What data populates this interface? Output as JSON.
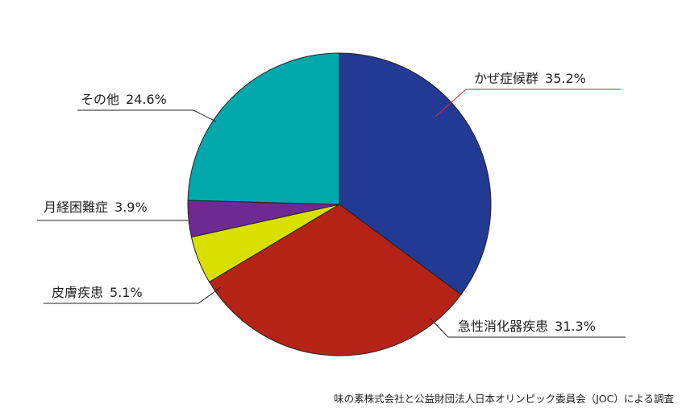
{
  "chart_data": {
    "type": "pie",
    "slices": [
      {
        "label": "かぜ症候群",
        "value": 35.2,
        "value_label": "35.2%",
        "color": "#233A94",
        "label_color": "#E8242F"
      },
      {
        "label": "急性消化器疾患",
        "value": 31.3,
        "value_label": "31.3%",
        "color": "#B52317",
        "label_color": "#222222"
      },
      {
        "label": "皮膚疾患",
        "value": 5.1,
        "value_label": "5.1%",
        "color": "#D9E000",
        "label_color": "#222222"
      },
      {
        "label": "月経困難症",
        "value": 3.9,
        "value_label": "3.9%",
        "color": "#6E2A93",
        "label_color": "#222222"
      },
      {
        "label": "その他",
        "value": 24.6,
        "value_label": "24.6%",
        "color": "#00A8AC",
        "label_color": "#222222"
      }
    ],
    "start_angle": "12 o'clock",
    "direction": "clockwise",
    "source_note": "味の素株式会社と公益財団法人日本オリンピック委員会（JOC）による調査"
  }
}
